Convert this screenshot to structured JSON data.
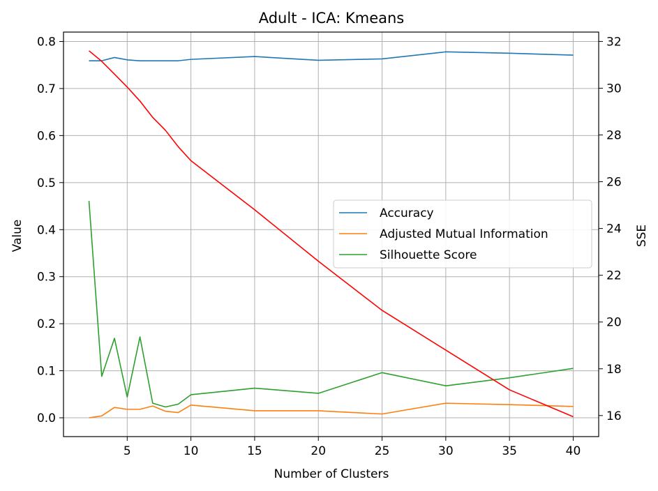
{
  "chart_data": {
    "type": "line",
    "title": "Adult - ICA: Kmeans",
    "xlabel": "Number of Clusters",
    "ylabel": "Value",
    "y2label": "SSE",
    "xlim": [
      0,
      42
    ],
    "ylim": [
      -0.04,
      0.82
    ],
    "y2lim": [
      15.1,
      32.4
    ],
    "xticks": [
      5,
      10,
      15,
      20,
      25,
      30,
      35,
      40
    ],
    "yticks": [
      0.0,
      0.1,
      0.2,
      0.3,
      0.4,
      0.5,
      0.6,
      0.7,
      0.8
    ],
    "y2ticks": [
      16,
      18,
      20,
      22,
      24,
      26,
      28,
      30,
      32
    ],
    "grid": true,
    "legend_position": "center-right",
    "x": [
      2,
      3,
      4,
      5,
      6,
      7,
      8,
      9,
      10,
      15,
      20,
      25,
      30,
      35,
      40
    ],
    "series": [
      {
        "name": "Accuracy",
        "color": "#1f77b4",
        "axis": "left",
        "values": [
          0.759,
          0.759,
          0.766,
          0.761,
          0.759,
          0.759,
          0.759,
          0.759,
          0.762,
          0.768,
          0.76,
          0.763,
          0.778,
          0.775,
          0.771
        ]
      },
      {
        "name": "Adjusted Mutual Information",
        "color": "#ff7f0e",
        "axis": "left",
        "values": [
          0.0,
          0.004,
          0.022,
          0.018,
          0.018,
          0.025,
          0.014,
          0.011,
          0.027,
          0.015,
          0.015,
          0.008,
          0.031,
          0.028,
          0.024
        ]
      },
      {
        "name": "Silhouette Score",
        "color": "#2ca02c",
        "axis": "left",
        "values": [
          0.461,
          0.088,
          0.169,
          0.044,
          0.172,
          0.031,
          0.023,
          0.029,
          0.049,
          0.063,
          0.052,
          0.096,
          0.068,
          0.085,
          0.105
        ]
      },
      {
        "color": "#ff0000",
        "axis": "right",
        "values": [
          31.6,
          31.15,
          30.6,
          30.05,
          29.45,
          28.75,
          28.2,
          27.5,
          26.9,
          24.8,
          22.6,
          20.5,
          18.8,
          17.1,
          15.95
        ]
      }
    ]
  }
}
